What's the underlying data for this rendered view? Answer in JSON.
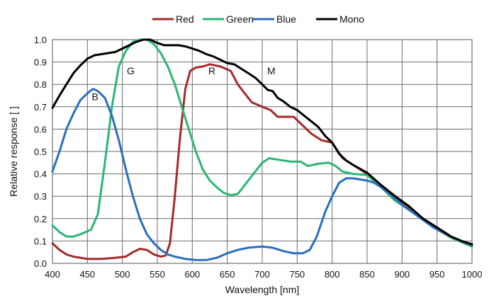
{
  "chart_data": {
    "type": "line",
    "title": "",
    "xlabel": "Wavelength [nm]",
    "ylabel": "Relative response [ ]",
    "xlim": [
      400,
      1000
    ],
    "ylim": [
      0,
      1.0
    ],
    "x_ticks": [
      "400",
      "450",
      "500",
      "550",
      "600",
      "650",
      "700",
      "750",
      "800",
      "850",
      "900",
      "950",
      "1000"
    ],
    "y_ticks": [
      "0.0",
      "0.1",
      "0.2",
      "0.3",
      "0.4",
      "0.5",
      "0.6",
      "0.7",
      "0.8",
      "0.9",
      "1.0"
    ],
    "grid": true,
    "legend_position": "top-center",
    "series": [
      {
        "name": "Red",
        "color": "#a52a2a",
        "points": [
          [
            400,
            0.09
          ],
          [
            410,
            0.06
          ],
          [
            420,
            0.04
          ],
          [
            430,
            0.03
          ],
          [
            450,
            0.02
          ],
          [
            470,
            0.02
          ],
          [
            490,
            0.025
          ],
          [
            505,
            0.03
          ],
          [
            515,
            0.05
          ],
          [
            525,
            0.065
          ],
          [
            535,
            0.06
          ],
          [
            545,
            0.04
          ],
          [
            555,
            0.03
          ],
          [
            562,
            0.035
          ],
          [
            568,
            0.09
          ],
          [
            575,
            0.3
          ],
          [
            582,
            0.55
          ],
          [
            590,
            0.78
          ],
          [
            597,
            0.86
          ],
          [
            605,
            0.875
          ],
          [
            615,
            0.88
          ],
          [
            625,
            0.89
          ],
          [
            640,
            0.88
          ],
          [
            655,
            0.86
          ],
          [
            665,
            0.8
          ],
          [
            675,
            0.76
          ],
          [
            685,
            0.72
          ],
          [
            700,
            0.7
          ],
          [
            712,
            0.685
          ],
          [
            722,
            0.655
          ],
          [
            730,
            0.655
          ],
          [
            745,
            0.655
          ],
          [
            755,
            0.625
          ],
          [
            770,
            0.58
          ],
          [
            785,
            0.55
          ],
          [
            800,
            0.54
          ],
          [
            815,
            0.47
          ],
          [
            830,
            0.44
          ],
          [
            850,
            0.4
          ],
          [
            870,
            0.35
          ],
          [
            890,
            0.3
          ],
          [
            910,
            0.25
          ],
          [
            930,
            0.2
          ],
          [
            950,
            0.16
          ],
          [
            970,
            0.12
          ],
          [
            985,
            0.1
          ],
          [
            1000,
            0.08
          ]
        ]
      },
      {
        "name": "Green",
        "color": "#2bb673",
        "points": [
          [
            400,
            0.17
          ],
          [
            410,
            0.14
          ],
          [
            420,
            0.12
          ],
          [
            430,
            0.12
          ],
          [
            440,
            0.13
          ],
          [
            455,
            0.15
          ],
          [
            465,
            0.22
          ],
          [
            475,
            0.45
          ],
          [
            485,
            0.7
          ],
          [
            495,
            0.88
          ],
          [
            505,
            0.95
          ],
          [
            515,
            0.99
          ],
          [
            525,
            1.0
          ],
          [
            535,
            1.0
          ],
          [
            545,
            0.98
          ],
          [
            555,
            0.94
          ],
          [
            565,
            0.88
          ],
          [
            575,
            0.8
          ],
          [
            585,
            0.7
          ],
          [
            595,
            0.6
          ],
          [
            605,
            0.5
          ],
          [
            615,
            0.42
          ],
          [
            625,
            0.37
          ],
          [
            635,
            0.34
          ],
          [
            645,
            0.315
          ],
          [
            655,
            0.305
          ],
          [
            665,
            0.31
          ],
          [
            675,
            0.35
          ],
          [
            690,
            0.41
          ],
          [
            700,
            0.45
          ],
          [
            710,
            0.47
          ],
          [
            720,
            0.465
          ],
          [
            740,
            0.455
          ],
          [
            755,
            0.455
          ],
          [
            765,
            0.435
          ],
          [
            780,
            0.445
          ],
          [
            795,
            0.45
          ],
          [
            805,
            0.435
          ],
          [
            815,
            0.41
          ],
          [
            830,
            0.4
          ],
          [
            850,
            0.395
          ],
          [
            870,
            0.34
          ],
          [
            890,
            0.28
          ],
          [
            910,
            0.24
          ],
          [
            930,
            0.195
          ],
          [
            950,
            0.155
          ],
          [
            970,
            0.115
          ],
          [
            985,
            0.095
          ],
          [
            1000,
            0.075
          ]
        ]
      },
      {
        "name": "Blue",
        "color": "#2a6ebf",
        "points": [
          [
            400,
            0.41
          ],
          [
            410,
            0.5
          ],
          [
            420,
            0.6
          ],
          [
            430,
            0.67
          ],
          [
            440,
            0.73
          ],
          [
            450,
            0.76
          ],
          [
            458,
            0.78
          ],
          [
            465,
            0.77
          ],
          [
            475,
            0.74
          ],
          [
            485,
            0.66
          ],
          [
            495,
            0.55
          ],
          [
            505,
            0.42
          ],
          [
            515,
            0.3
          ],
          [
            525,
            0.2
          ],
          [
            535,
            0.13
          ],
          [
            545,
            0.09
          ],
          [
            555,
            0.06
          ],
          [
            565,
            0.04
          ],
          [
            575,
            0.03
          ],
          [
            590,
            0.02
          ],
          [
            605,
            0.015
          ],
          [
            620,
            0.015
          ],
          [
            635,
            0.025
          ],
          [
            650,
            0.045
          ],
          [
            665,
            0.06
          ],
          [
            680,
            0.07
          ],
          [
            700,
            0.075
          ],
          [
            715,
            0.07
          ],
          [
            730,
            0.055
          ],
          [
            745,
            0.045
          ],
          [
            758,
            0.045
          ],
          [
            768,
            0.06
          ],
          [
            778,
            0.12
          ],
          [
            790,
            0.23
          ],
          [
            800,
            0.3
          ],
          [
            810,
            0.36
          ],
          [
            820,
            0.38
          ],
          [
            830,
            0.38
          ],
          [
            840,
            0.375
          ],
          [
            850,
            0.37
          ],
          [
            860,
            0.36
          ],
          [
            875,
            0.33
          ],
          [
            890,
            0.29
          ],
          [
            905,
            0.25
          ],
          [
            925,
            0.205
          ],
          [
            945,
            0.16
          ],
          [
            965,
            0.125
          ],
          [
            985,
            0.1
          ],
          [
            1000,
            0.08
          ]
        ]
      },
      {
        "name": "Mono",
        "color": "#000000",
        "points": [
          [
            400,
            0.695
          ],
          [
            410,
            0.75
          ],
          [
            420,
            0.8
          ],
          [
            430,
            0.85
          ],
          [
            440,
            0.885
          ],
          [
            450,
            0.915
          ],
          [
            460,
            0.93
          ],
          [
            470,
            0.935
          ],
          [
            480,
            0.94
          ],
          [
            490,
            0.945
          ],
          [
            500,
            0.96
          ],
          [
            510,
            0.975
          ],
          [
            520,
            0.99
          ],
          [
            530,
            1.0
          ],
          [
            540,
            1.0
          ],
          [
            550,
            0.985
          ],
          [
            560,
            0.975
          ],
          [
            570,
            0.975
          ],
          [
            580,
            0.975
          ],
          [
            590,
            0.97
          ],
          [
            600,
            0.96
          ],
          [
            610,
            0.95
          ],
          [
            620,
            0.935
          ],
          [
            630,
            0.925
          ],
          [
            640,
            0.91
          ],
          [
            650,
            0.895
          ],
          [
            660,
            0.89
          ],
          [
            670,
            0.87
          ],
          [
            680,
            0.85
          ],
          [
            690,
            0.83
          ],
          [
            700,
            0.8
          ],
          [
            708,
            0.775
          ],
          [
            715,
            0.77
          ],
          [
            722,
            0.74
          ],
          [
            730,
            0.725
          ],
          [
            740,
            0.7
          ],
          [
            750,
            0.685
          ],
          [
            760,
            0.66
          ],
          [
            770,
            0.635
          ],
          [
            780,
            0.61
          ],
          [
            790,
            0.57
          ],
          [
            800,
            0.54
          ],
          [
            810,
            0.49
          ],
          [
            820,
            0.46
          ],
          [
            830,
            0.44
          ],
          [
            850,
            0.405
          ],
          [
            870,
            0.35
          ],
          [
            890,
            0.3
          ],
          [
            910,
            0.255
          ],
          [
            930,
            0.2
          ],
          [
            950,
            0.16
          ],
          [
            970,
            0.12
          ],
          [
            985,
            0.1
          ],
          [
            1000,
            0.085
          ]
        ]
      }
    ],
    "annotations": [
      {
        "text": "B",
        "x": 461,
        "y": 0.73
      },
      {
        "text": "G",
        "x": 512,
        "y": 0.845
      },
      {
        "text": "R",
        "x": 628,
        "y": 0.845
      },
      {
        "text": "M",
        "x": 713,
        "y": 0.845
      }
    ]
  }
}
